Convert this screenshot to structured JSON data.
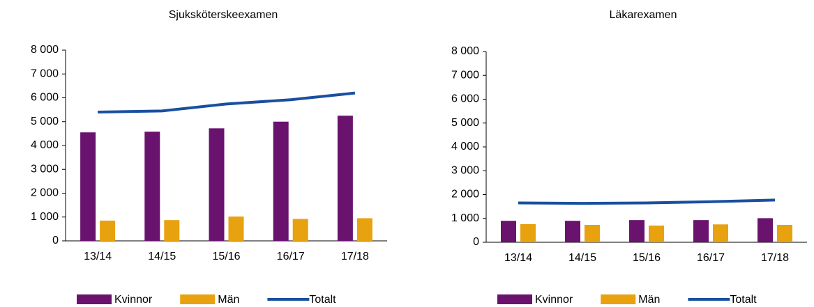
{
  "chart_data": [
    {
      "type": "bar",
      "title": "Sjuksköterskeexamen",
      "categories": [
        "13/14",
        "14/15",
        "15/16",
        "16/17",
        "17/18"
      ],
      "series": [
        {
          "name": "Kvinnor",
          "type": "bar",
          "color": "#69136f",
          "values": [
            4550,
            4580,
            4720,
            5000,
            5250
          ]
        },
        {
          "name": "Män",
          "type": "bar",
          "color": "#e8a20f",
          "values": [
            850,
            870,
            1020,
            920,
            950
          ]
        },
        {
          "name": "Totalt",
          "type": "line",
          "color": "#1a4f9f",
          "values": [
            5400,
            5450,
            5740,
            5920,
            6200
          ]
        }
      ],
      "ylim": [
        0,
        8000
      ],
      "yticks": [
        0,
        {
          "value": 1000,
          "label": "1 000"
        },
        {
          "value": 2000,
          "label": "2 000"
        },
        {
          "value": 3000,
          "label": "3 000"
        },
        {
          "value": 4000,
          "label": "4 000"
        },
        {
          "value": 5000,
          "label": "5 000"
        },
        {
          "value": 6000,
          "label": "6 000"
        },
        {
          "value": 7000,
          "label": "7 000"
        },
        {
          "value": 8000,
          "label": "8 000"
        }
      ],
      "grid": false,
      "legend": "bottom"
    },
    {
      "type": "bar",
      "title": "Läkarexamen",
      "categories": [
        "13/14",
        "14/15",
        "15/16",
        "16/17",
        "17/18"
      ],
      "series": [
        {
          "name": "Kvinnor",
          "type": "bar",
          "color": "#69136f",
          "values": [
            900,
            900,
            930,
            930,
            1010
          ]
        },
        {
          "name": "Män",
          "type": "bar",
          "color": "#e8a20f",
          "values": [
            760,
            730,
            700,
            750,
            730
          ]
        },
        {
          "name": "Totalt",
          "type": "line",
          "color": "#1a4f9f",
          "values": [
            1650,
            1630,
            1650,
            1700,
            1770
          ]
        }
      ],
      "ylim": [
        0,
        8000
      ],
      "yticks": [
        0,
        {
          "value": 1000,
          "label": "1 000"
        },
        {
          "value": 2000,
          "label": "2 000"
        },
        {
          "value": 3000,
          "label": "3 000"
        },
        {
          "value": 4000,
          "label": "4 000"
        },
        {
          "value": 5000,
          "label": "5 000"
        },
        {
          "value": 6000,
          "label": "6 000"
        },
        {
          "value": 7000,
          "label": "7 000"
        },
        {
          "value": 8000,
          "label": "8 000"
        }
      ],
      "grid": false,
      "legend": "bottom"
    }
  ]
}
